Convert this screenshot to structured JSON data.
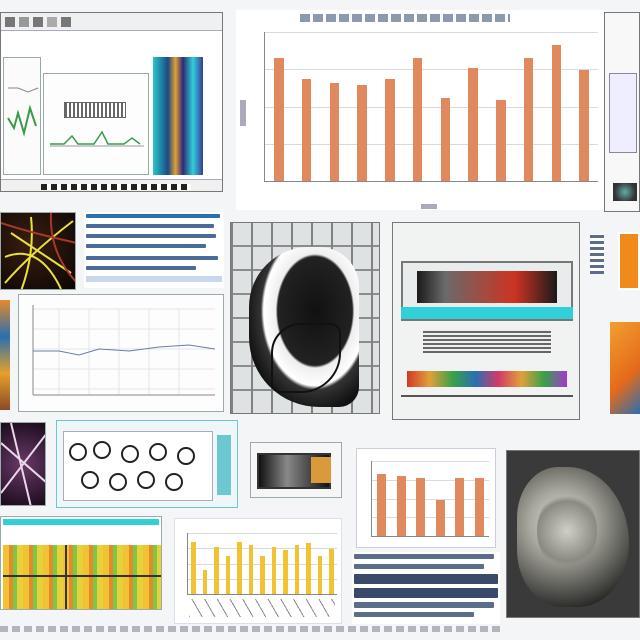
{
  "colors": {
    "bar_orange": "#e0895e",
    "bar_yellow": "#f1c232",
    "accent_cyan": "#2fd0d8",
    "accent_green": "#3a9a4a",
    "frame_gray": "#777777"
  },
  "icons": [
    "toolbar-icon",
    "monitor-icon"
  ],
  "chart_data": [
    {
      "type": "bar",
      "values": [
        58,
        48,
        46,
        45,
        48,
        58,
        39,
        53,
        38,
        58,
        64,
        52
      ],
      "ylim": [
        0,
        70
      ],
      "grid": true
    },
    {
      "type": "bar",
      "values": [
        33,
        32,
        31,
        19,
        31,
        31
      ],
      "ylim": [
        0,
        40
      ],
      "grid": true
    },
    {
      "type": "bar",
      "values": [
        30,
        14,
        27,
        22,
        30,
        28,
        22,
        27,
        25,
        28,
        29,
        22,
        26
      ],
      "ylim": [
        0,
        35
      ],
      "grid": true
    }
  ]
}
